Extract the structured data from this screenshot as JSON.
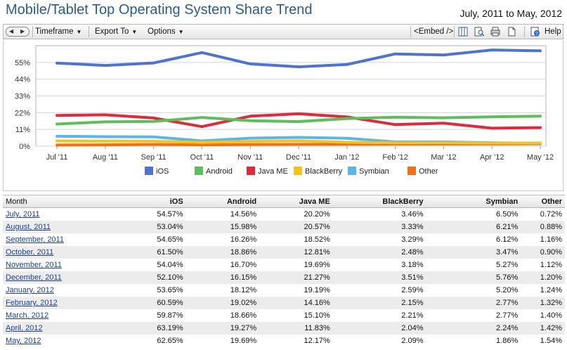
{
  "header": {
    "title": "Mobile/Tablet Top Operating System Share Trend",
    "date_range": "July, 2011 to May, 2012"
  },
  "toolbar": {
    "nav_icon": "back-forward-arrows-icon",
    "timeframe_label": "Timeframe",
    "export_label": "Export To",
    "options_label": "Options",
    "embed_label": "<Embed />",
    "help_label": "Help",
    "icons": [
      "columns-icon",
      "zoom-icon",
      "print-icon",
      "page-icon",
      "help-icon"
    ]
  },
  "colors": {
    "iOS": "#4f73d3",
    "Android": "#5cc05a",
    "Java ME": "#e3283c",
    "BlackBerry": "#f6c21c",
    "Symbian": "#57b8ee",
    "Other": "#ef7015"
  },
  "chart_data": {
    "type": "line",
    "title": "",
    "xlabel": "",
    "ylabel": "",
    "categories": [
      "Jul '11",
      "Aug '11",
      "Sep '11",
      "Oct '11",
      "Nov '11",
      "Dec '11",
      "Jan '12",
      "Feb '12",
      "Mar '12",
      "Apr '12",
      "May '12"
    ],
    "y_ticks": [
      "0%",
      "11%",
      "22%",
      "33%",
      "44%",
      "55%"
    ],
    "ylim": [
      0,
      66
    ],
    "grid": true,
    "legend_position": "bottom",
    "series": [
      {
        "name": "iOS",
        "values": [
          54.57,
          53.04,
          54.65,
          61.5,
          54.04,
          52.1,
          53.65,
          60.59,
          59.87,
          63.19,
          62.65
        ]
      },
      {
        "name": "Android",
        "values": [
          14.56,
          15.98,
          16.26,
          18.86,
          16.7,
          16.15,
          18.12,
          19.02,
          18.66,
          19.27,
          19.69
        ]
      },
      {
        "name": "Java ME",
        "values": [
          20.2,
          20.57,
          18.52,
          12.81,
          19.69,
          21.27,
          19.19,
          14.16,
          15.1,
          11.83,
          12.17
        ]
      },
      {
        "name": "BlackBerry",
        "values": [
          3.46,
          3.33,
          3.29,
          2.48,
          3.18,
          3.51,
          2.59,
          2.15,
          2.21,
          2.04,
          2.09
        ]
      },
      {
        "name": "Symbian",
        "values": [
          6.5,
          6.21,
          6.12,
          3.47,
          5.27,
          5.76,
          5.2,
          2.77,
          2.77,
          2.24,
          1.86
        ]
      },
      {
        "name": "Other",
        "values": [
          0.72,
          0.88,
          1.16,
          0.9,
          1.12,
          1.2,
          1.24,
          1.32,
          1.4,
          1.42,
          1.54
        ]
      }
    ]
  },
  "table": {
    "headers": [
      "Month",
      "iOS",
      "Android",
      "Java ME",
      "BlackBerry",
      "Symbian",
      "Other"
    ],
    "rows": [
      [
        "July, 2011",
        "54.57%",
        "14.56%",
        "20.20%",
        "3.46%",
        "6.50%",
        "0.72%"
      ],
      [
        "August, 2011",
        "53.04%",
        "15.98%",
        "20.57%",
        "3.33%",
        "6.21%",
        "0.88%"
      ],
      [
        "September, 2011",
        "54.65%",
        "16.26%",
        "18.52%",
        "3.29%",
        "6.12%",
        "1.16%"
      ],
      [
        "October, 2011",
        "61.50%",
        "18.86%",
        "12.81%",
        "2.48%",
        "3.47%",
        "0.90%"
      ],
      [
        "November, 2011",
        "54.04%",
        "16.70%",
        "19.69%",
        "3.18%",
        "5.27%",
        "1.12%"
      ],
      [
        "December, 2011",
        "52.10%",
        "16.15%",
        "21.27%",
        "3.51%",
        "5.76%",
        "1.20%"
      ],
      [
        "January, 2012",
        "53.65%",
        "18.12%",
        "19.19%",
        "2.59%",
        "5.20%",
        "1.24%"
      ],
      [
        "February, 2012",
        "60.59%",
        "19.02%",
        "14.16%",
        "2.15%",
        "2.77%",
        "1.32%"
      ],
      [
        "March, 2012",
        "59.87%",
        "18.66%",
        "15.10%",
        "2.21%",
        "2.77%",
        "1.40%"
      ],
      [
        "April, 2012",
        "63.19%",
        "19.27%",
        "11.83%",
        "2.04%",
        "2.24%",
        "1.42%"
      ],
      [
        "May, 2012",
        "62.65%",
        "19.69%",
        "12.17%",
        "2.09%",
        "1.86%",
        "1.54%"
      ]
    ]
  }
}
